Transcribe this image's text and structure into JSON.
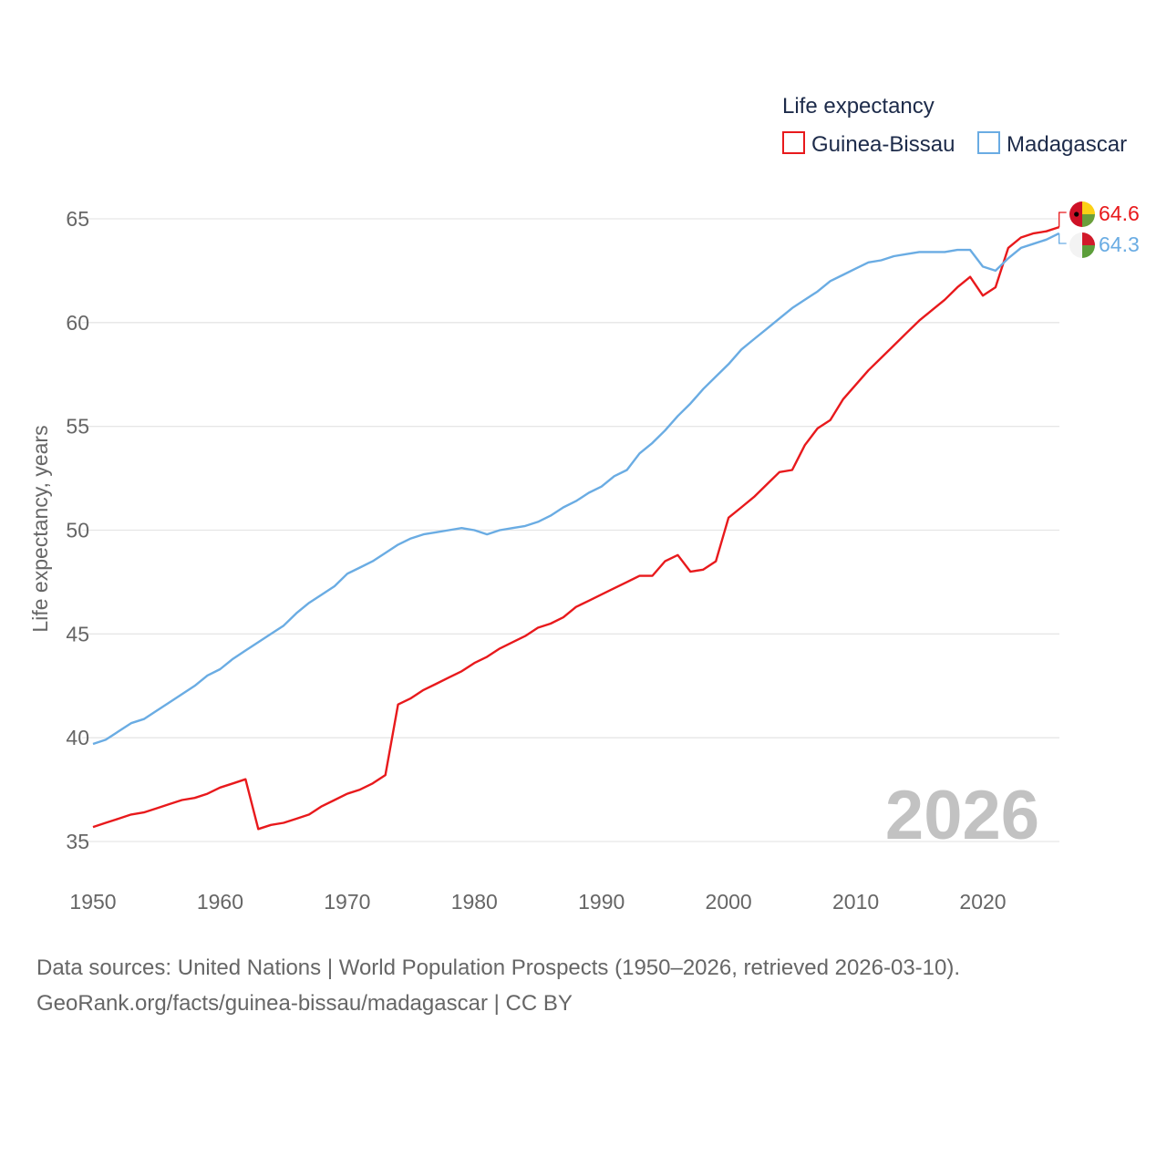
{
  "chart_data": {
    "type": "line",
    "legend_title": "Life expectancy",
    "ylabel": "Life expectancy, years",
    "xlabel": "",
    "xlim": [
      1950,
      2026
    ],
    "ylim": [
      35,
      65
    ],
    "x_ticks": [
      "1950",
      "1960",
      "1970",
      "1980",
      "1990",
      "2000",
      "2010",
      "2020"
    ],
    "y_ticks": [
      "35",
      "40",
      "45",
      "50",
      "55",
      "60",
      "65"
    ],
    "current_year": "2026",
    "x": [
      1950,
      1951,
      1952,
      1953,
      1954,
      1955,
      1956,
      1957,
      1958,
      1959,
      1960,
      1961,
      1962,
      1963,
      1964,
      1965,
      1966,
      1967,
      1968,
      1969,
      1970,
      1971,
      1972,
      1973,
      1974,
      1975,
      1976,
      1977,
      1978,
      1979,
      1980,
      1981,
      1982,
      1983,
      1984,
      1985,
      1986,
      1987,
      1988,
      1989,
      1990,
      1991,
      1992,
      1993,
      1994,
      1995,
      1996,
      1997,
      1998,
      1999,
      2000,
      2001,
      2002,
      2003,
      2004,
      2005,
      2006,
      2007,
      2008,
      2009,
      2010,
      2011,
      2012,
      2013,
      2014,
      2015,
      2016,
      2017,
      2018,
      2019,
      2020,
      2021,
      2022,
      2023,
      2024,
      2025,
      2026
    ],
    "series": [
      {
        "name": "Guinea-Bissau",
        "color": "#e8191c",
        "end_label": "64.6",
        "values": [
          35.7,
          35.9,
          36.1,
          36.3,
          36.4,
          36.6,
          36.8,
          37.0,
          37.1,
          37.3,
          37.6,
          37.8,
          38.0,
          35.6,
          35.8,
          35.9,
          36.1,
          36.3,
          36.7,
          37.0,
          37.3,
          37.5,
          37.8,
          38.2,
          41.6,
          41.9,
          42.3,
          42.6,
          42.9,
          43.2,
          43.6,
          43.9,
          44.3,
          44.6,
          44.9,
          45.3,
          45.5,
          45.8,
          46.3,
          46.6,
          46.9,
          47.2,
          47.5,
          47.8,
          47.8,
          48.5,
          48.8,
          48.0,
          48.1,
          48.5,
          50.6,
          51.1,
          51.6,
          52.2,
          52.8,
          52.9,
          54.1,
          54.9,
          55.3,
          56.3,
          57.0,
          57.7,
          58.3,
          58.9,
          59.5,
          60.1,
          60.6,
          61.1,
          61.7,
          62.2,
          61.3,
          61.7,
          63.6,
          64.1,
          64.3,
          64.4,
          64.6
        ]
      },
      {
        "name": "Madagascar",
        "color": "#6aace3",
        "end_label": "64.3",
        "values": [
          39.7,
          39.9,
          40.3,
          40.7,
          40.9,
          41.3,
          41.7,
          42.1,
          42.5,
          43.0,
          43.3,
          43.8,
          44.2,
          44.6,
          45.0,
          45.4,
          46.0,
          46.5,
          46.9,
          47.3,
          47.9,
          48.2,
          48.5,
          48.9,
          49.3,
          49.6,
          49.8,
          49.9,
          50.0,
          50.1,
          50.0,
          49.8,
          50.0,
          50.1,
          50.2,
          50.4,
          50.7,
          51.1,
          51.4,
          51.8,
          52.1,
          52.6,
          52.9,
          53.7,
          54.2,
          54.8,
          55.5,
          56.1,
          56.8,
          57.4,
          58.0,
          58.7,
          59.2,
          59.7,
          60.2,
          60.7,
          61.1,
          61.5,
          62.0,
          62.3,
          62.6,
          62.9,
          63.0,
          63.2,
          63.3,
          63.4,
          63.4,
          63.4,
          63.5,
          63.5,
          62.7,
          62.5,
          63.1,
          63.6,
          63.8,
          64.0,
          64.3
        ]
      }
    ]
  },
  "footer": {
    "line1": "Data sources: United Nations | World Population Prospects (1950–2026, retrieved 2026-03-10).",
    "line2": "GeoRank.org/facts/guinea-bissau/madagascar | CC BY"
  }
}
